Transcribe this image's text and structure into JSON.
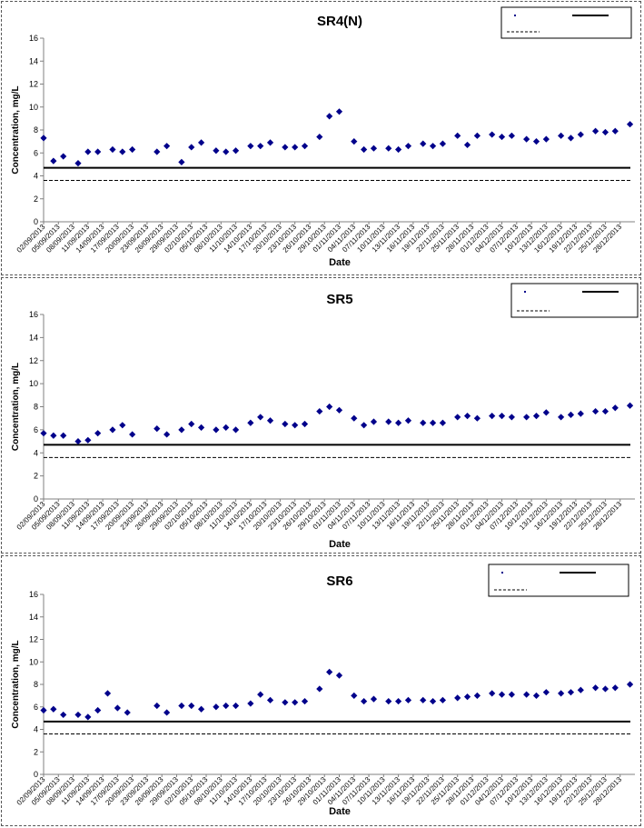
{
  "shared": {
    "ylabel": "Concentration, mg/L",
    "xlabel": "Date",
    "ylim": [
      0,
      16
    ],
    "yticks": [
      "0",
      "2",
      "4",
      "6",
      "8",
      "10",
      "12",
      "14",
      "16"
    ],
    "x_range": [
      "02/09/2013",
      "31/12/2013"
    ],
    "xticks": [
      "02/09/2013",
      "05/09/2013",
      "08/09/2013",
      "11/09/2013",
      "14/09/2013",
      "17/09/2013",
      "20/09/2013",
      "23/09/2013",
      "26/09/2013",
      "29/09/2013",
      "02/10/2013",
      "05/10/2013",
      "08/10/2013",
      "11/10/2013",
      "14/10/2013",
      "17/10/2013",
      "20/10/2013",
      "23/10/2013",
      "26/10/2013",
      "29/10/2013",
      "01/11/2013",
      "04/11/2013",
      "07/11/2013",
      "10/11/2013",
      "13/11/2013",
      "16/11/2013",
      "19/11/2013",
      "22/11/2013",
      "25/11/2013",
      "28/11/2013",
      "01/12/2013",
      "04/12/2013",
      "07/12/2013",
      "10/12/2013",
      "13/12/2013",
      "16/12/2013",
      "19/12/2013",
      "22/12/2013",
      "25/12/2013",
      "28/12/2013"
    ],
    "colors": {
      "marker": "#00008b",
      "line": "#000000",
      "axis": "#808080"
    }
  },
  "chart_data": [
    {
      "type": "scatter",
      "title": "SR4(N)",
      "ylim": [
        0,
        16
      ],
      "series": [
        {
          "values": [
            [
              "02/09/2013",
              7.3
            ],
            [
              "04/09/2013",
              5.3
            ],
            [
              "06/09/2013",
              5.7
            ],
            [
              "09/09/2013",
              5.1
            ],
            [
              "11/09/2013",
              6.1
            ],
            [
              "13/09/2013",
              6.1
            ],
            [
              "16/09/2013",
              6.3
            ],
            [
              "18/09/2013",
              6.1
            ],
            [
              "20/09/2013",
              6.3
            ],
            [
              "25/09/2013",
              6.1
            ],
            [
              "27/09/2013",
              6.6
            ],
            [
              "30/09/2013",
              5.2
            ],
            [
              "02/10/2013",
              6.5
            ],
            [
              "04/10/2013",
              6.9
            ],
            [
              "07/10/2013",
              6.2
            ],
            [
              "09/10/2013",
              6.1
            ],
            [
              "11/10/2013",
              6.2
            ],
            [
              "14/10/2013",
              6.6
            ],
            [
              "16/10/2013",
              6.6
            ],
            [
              "18/10/2013",
              6.9
            ],
            [
              "21/10/2013",
              6.5
            ],
            [
              "23/10/2013",
              6.5
            ],
            [
              "25/10/2013",
              6.6
            ],
            [
              "28/10/2013",
              7.4
            ],
            [
              "30/10/2013",
              9.2
            ],
            [
              "01/11/2013",
              9.6
            ],
            [
              "04/11/2013",
              7.0
            ],
            [
              "06/11/2013",
              6.3
            ],
            [
              "08/11/2013",
              6.4
            ],
            [
              "11/11/2013",
              6.4
            ],
            [
              "13/11/2013",
              6.3
            ],
            [
              "15/11/2013",
              6.6
            ],
            [
              "18/11/2013",
              6.8
            ],
            [
              "20/11/2013",
              6.6
            ],
            [
              "22/11/2013",
              6.8
            ],
            [
              "25/11/2013",
              7.5
            ],
            [
              "27/11/2013",
              6.7
            ],
            [
              "29/11/2013",
              7.5
            ],
            [
              "02/12/2013",
              7.6
            ],
            [
              "04/12/2013",
              7.4
            ],
            [
              "06/12/2013",
              7.5
            ],
            [
              "09/12/2013",
              7.2
            ],
            [
              "11/12/2013",
              7.0
            ],
            [
              "13/12/2013",
              7.2
            ],
            [
              "16/12/2013",
              7.5
            ],
            [
              "18/12/2013",
              7.3
            ],
            [
              "20/12/2013",
              7.6
            ],
            [
              "23/12/2013",
              7.9
            ],
            [
              "25/12/2013",
              7.8
            ],
            [
              "27/12/2013",
              7.9
            ],
            [
              "30/12/2013",
              8.5
            ]
          ]
        }
      ],
      "hlines": [
        {
          "y": 4.7,
          "style": "solid"
        },
        {
          "y": 3.6,
          "style": "dashed"
        }
      ]
    },
    {
      "type": "scatter",
      "title": "SR5",
      "ylim": [
        0,
        16
      ],
      "series": [
        {
          "values": [
            [
              "02/09/2013",
              5.7
            ],
            [
              "04/09/2013",
              5.5
            ],
            [
              "06/09/2013",
              5.5
            ],
            [
              "09/09/2013",
              5.0
            ],
            [
              "11/09/2013",
              5.1
            ],
            [
              "13/09/2013",
              5.7
            ],
            [
              "16/09/2013",
              6.0
            ],
            [
              "18/09/2013",
              6.4
            ],
            [
              "20/09/2013",
              5.6
            ],
            [
              "25/09/2013",
              6.1
            ],
            [
              "27/09/2013",
              5.6
            ],
            [
              "30/09/2013",
              6.0
            ],
            [
              "02/10/2013",
              6.5
            ],
            [
              "04/10/2013",
              6.2
            ],
            [
              "07/10/2013",
              6.0
            ],
            [
              "09/10/2013",
              6.2
            ],
            [
              "11/10/2013",
              6.0
            ],
            [
              "14/10/2013",
              6.6
            ],
            [
              "16/10/2013",
              7.1
            ],
            [
              "18/10/2013",
              6.8
            ],
            [
              "21/10/2013",
              6.5
            ],
            [
              "23/10/2013",
              6.4
            ],
            [
              "25/10/2013",
              6.5
            ],
            [
              "28/10/2013",
              7.6
            ],
            [
              "30/10/2013",
              8.0
            ],
            [
              "01/11/2013",
              7.7
            ],
            [
              "04/11/2013",
              7.0
            ],
            [
              "06/11/2013",
              6.4
            ],
            [
              "08/11/2013",
              6.7
            ],
            [
              "11/11/2013",
              6.7
            ],
            [
              "13/11/2013",
              6.6
            ],
            [
              "15/11/2013",
              6.8
            ],
            [
              "18/11/2013",
              6.6
            ],
            [
              "20/11/2013",
              6.6
            ],
            [
              "22/11/2013",
              6.6
            ],
            [
              "25/11/2013",
              7.1
            ],
            [
              "27/11/2013",
              7.2
            ],
            [
              "29/11/2013",
              7.0
            ],
            [
              "02/12/2013",
              7.2
            ],
            [
              "04/12/2013",
              7.2
            ],
            [
              "06/12/2013",
              7.1
            ],
            [
              "09/12/2013",
              7.1
            ],
            [
              "11/12/2013",
              7.2
            ],
            [
              "13/12/2013",
              7.5
            ],
            [
              "16/12/2013",
              7.1
            ],
            [
              "18/12/2013",
              7.3
            ],
            [
              "20/12/2013",
              7.4
            ],
            [
              "23/12/2013",
              7.6
            ],
            [
              "25/12/2013",
              7.6
            ],
            [
              "27/12/2013",
              7.9
            ],
            [
              "30/12/2013",
              8.1
            ]
          ]
        }
      ],
      "hlines": [
        {
          "y": 4.7,
          "style": "solid"
        },
        {
          "y": 3.6,
          "style": "dashed"
        }
      ]
    },
    {
      "type": "scatter",
      "title": "SR6",
      "ylim": [
        0,
        16
      ],
      "series": [
        {
          "values": [
            [
              "02/09/2013",
              5.7
            ],
            [
              "04/09/2013",
              5.8
            ],
            [
              "06/09/2013",
              5.3
            ],
            [
              "09/09/2013",
              5.3
            ],
            [
              "11/09/2013",
              5.1
            ],
            [
              "13/09/2013",
              5.7
            ],
            [
              "15/09/2013",
              7.2
            ],
            [
              "17/09/2013",
              5.9
            ],
            [
              "19/09/2013",
              5.5
            ],
            [
              "25/09/2013",
              6.1
            ],
            [
              "27/09/2013",
              5.5
            ],
            [
              "30/09/2013",
              6.1
            ],
            [
              "02/10/2013",
              6.1
            ],
            [
              "04/10/2013",
              5.8
            ],
            [
              "07/10/2013",
              6.0
            ],
            [
              "09/10/2013",
              6.1
            ],
            [
              "11/10/2013",
              6.1
            ],
            [
              "14/10/2013",
              6.3
            ],
            [
              "16/10/2013",
              7.1
            ],
            [
              "18/10/2013",
              6.6
            ],
            [
              "21/10/2013",
              6.4
            ],
            [
              "23/10/2013",
              6.4
            ],
            [
              "25/10/2013",
              6.5
            ],
            [
              "28/10/2013",
              7.6
            ],
            [
              "30/10/2013",
              9.1
            ],
            [
              "01/11/2013",
              8.8
            ],
            [
              "04/11/2013",
              7.0
            ],
            [
              "06/11/2013",
              6.5
            ],
            [
              "08/11/2013",
              6.7
            ],
            [
              "11/11/2013",
              6.5
            ],
            [
              "13/11/2013",
              6.5
            ],
            [
              "15/11/2013",
              6.6
            ],
            [
              "18/11/2013",
              6.6
            ],
            [
              "20/11/2013",
              6.5
            ],
            [
              "22/11/2013",
              6.6
            ],
            [
              "25/11/2013",
              6.8
            ],
            [
              "27/11/2013",
              6.9
            ],
            [
              "29/11/2013",
              7.0
            ],
            [
              "02/12/2013",
              7.2
            ],
            [
              "04/12/2013",
              7.1
            ],
            [
              "06/12/2013",
              7.1
            ],
            [
              "09/12/2013",
              7.1
            ],
            [
              "11/12/2013",
              7.0
            ],
            [
              "13/12/2013",
              7.3
            ],
            [
              "16/12/2013",
              7.2
            ],
            [
              "18/12/2013",
              7.3
            ],
            [
              "20/12/2013",
              7.5
            ],
            [
              "23/12/2013",
              7.7
            ],
            [
              "25/12/2013",
              7.6
            ],
            [
              "27/12/2013",
              7.7
            ],
            [
              "30/12/2013",
              8.0
            ]
          ]
        }
      ],
      "hlines": [
        {
          "y": 4.7,
          "style": "solid"
        },
        {
          "y": 3.6,
          "style": "dashed"
        }
      ]
    }
  ]
}
